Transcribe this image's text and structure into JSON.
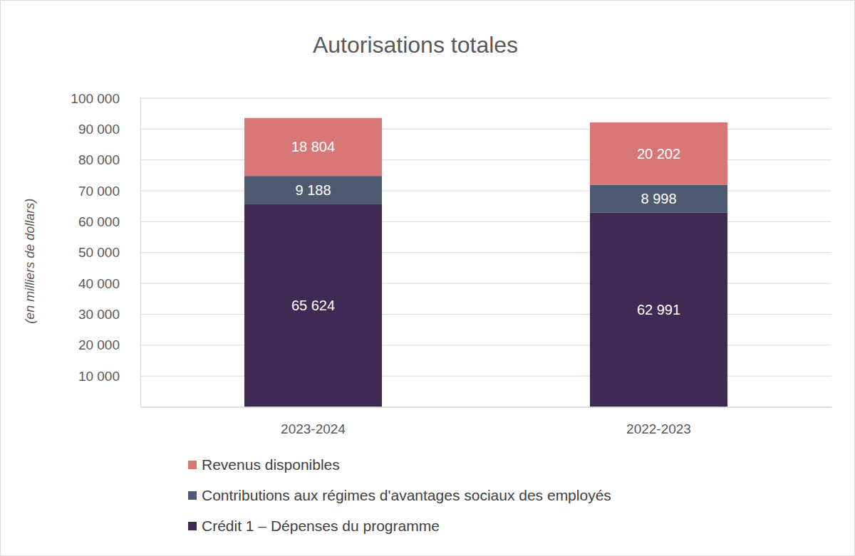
{
  "chart_data": {
    "type": "bar",
    "title": "Autorisations totales",
    "y_label": "(en milliers de dollars)",
    "categories": [
      "2023-2024",
      "2022-2023"
    ],
    "stacked": true,
    "data_labels": true,
    "grid": true,
    "legend": "bottom",
    "ylim": [
      0,
      100000
    ],
    "yticks": [
      {
        "value": 10000,
        "label": "10 000"
      },
      {
        "value": 20000,
        "label": "20 000"
      },
      {
        "value": 30000,
        "label": "30 000"
      },
      {
        "value": 40000,
        "label": "40 000"
      },
      {
        "value": 50000,
        "label": "50 000"
      },
      {
        "value": 60000,
        "label": "60 000"
      },
      {
        "value": 70000,
        "label": "70 000"
      },
      {
        "value": 80000,
        "label": "80 000"
      },
      {
        "value": 90000,
        "label": "90 000"
      },
      {
        "value": 100000,
        "label": "100 000"
      }
    ],
    "series": [
      {
        "name": "Crédit 1 – Dépenses du programme",
        "color": "#3e2a52",
        "values": [
          65624,
          62991
        ],
        "value_labels": [
          "65 624",
          "62 991"
        ]
      },
      {
        "name": "Contributions aux régimes d'avantages sociaux des employés",
        "color": "#4e5a70",
        "values": [
          9188,
          8998
        ],
        "value_labels": [
          "9 188",
          "8 998"
        ]
      },
      {
        "name": "Revenus disponibles",
        "color": "#d97777",
        "values": [
          18804,
          20202
        ],
        "value_labels": [
          "18 804",
          "20 202"
        ]
      }
    ]
  }
}
